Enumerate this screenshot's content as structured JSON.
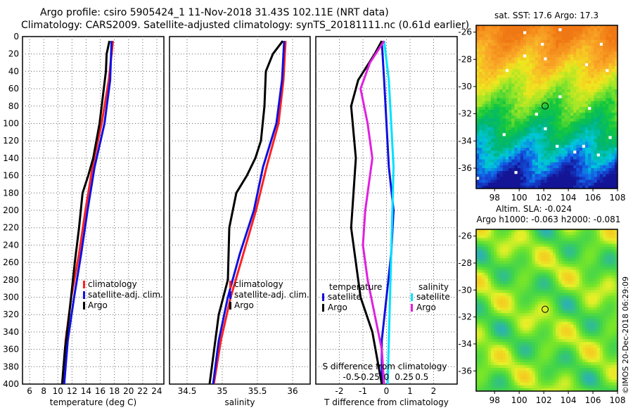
{
  "header": {
    "line1": "Argo profile: csiro 5905424_1 11-Nov-2018 31.43S 102.11E (NRT data)",
    "line2": "Climatology: CARS2009. Satellite-adjusted climatology: synTS_20181111.nc (0.61d earlier)"
  },
  "watermark": "©IMOS 20-Dec-2018 06:29:09",
  "colors": {
    "climatology": "#ff2020",
    "satellite_adj": "#1010e0",
    "argo": "#000000",
    "sat_salinity": "#00e0ff",
    "argo_salinity": "#e020e0"
  },
  "chart_data": [
    {
      "type": "line",
      "name": "temperature-profile",
      "xlabel": "temperature (deg C)",
      "ylabel": "",
      "xlim": [
        5,
        25
      ],
      "ylim": [
        400,
        0
      ],
      "xticks": [
        6,
        8,
        10,
        12,
        14,
        16,
        18,
        20,
        22,
        24
      ],
      "yticks": [
        0,
        20,
        40,
        60,
        80,
        100,
        120,
        140,
        160,
        180,
        200,
        220,
        240,
        260,
        280,
        300,
        320,
        340,
        360,
        380,
        400
      ],
      "grid": true,
      "legend": {
        "placement": "bottom-right",
        "entries": [
          "climatology",
          "satellite-adj. clim.",
          "Argo"
        ]
      },
      "series": [
        {
          "name": "climatology",
          "color": "#ff2020",
          "x": [
            17.8,
            17.2,
            16.2,
            14.9,
            13.9,
            13.0,
            11.9,
            11.1,
            10.7
          ],
          "y": [
            5,
            50,
            100,
            150,
            200,
            250,
            300,
            350,
            400
          ]
        },
        {
          "name": "satellite-adj. clim.",
          "color": "#1010e0",
          "x": [
            17.6,
            17.4,
            16.6,
            15.2,
            14.2,
            13.3,
            12.3,
            11.4,
            10.9
          ],
          "y": [
            5,
            50,
            100,
            150,
            200,
            250,
            300,
            350,
            400
          ]
        },
        {
          "name": "Argo",
          "color": "#000000",
          "x": [
            17.3,
            16.9,
            16.8,
            16.5,
            16.2,
            15.9,
            15.0,
            14.3,
            13.5,
            13.0,
            12.4,
            11.6,
            11.0,
            10.6
          ],
          "y": [
            5,
            20,
            40,
            60,
            80,
            100,
            140,
            160,
            180,
            220,
            260,
            320,
            360,
            400
          ]
        }
      ]
    },
    {
      "type": "line",
      "name": "salinity-profile",
      "xlabel": "salinity",
      "xlim": [
        34.25,
        36.25
      ],
      "ylim": [
        400,
        0
      ],
      "xticks": [
        34.5,
        35,
        35.5,
        36
      ],
      "xtick_labels": [
        "34.5",
        "35",
        "35.5",
        "36"
      ],
      "grid": true,
      "legend": {
        "placement": "bottom-right",
        "entries": [
          "climatology",
          "satellite-adj. clim.",
          "Argo"
        ]
      },
      "series": [
        {
          "name": "climatology",
          "color": "#ff2020",
          "x": [
            35.9,
            35.87,
            35.8,
            35.63,
            35.48,
            35.3,
            35.12,
            34.98,
            34.88
          ],
          "y": [
            5,
            50,
            100,
            150,
            200,
            250,
            300,
            350,
            400
          ]
        },
        {
          "name": "satellite-adj. clim.",
          "color": "#1010e0",
          "x": [
            35.88,
            35.85,
            35.77,
            35.58,
            35.45,
            35.25,
            35.08,
            34.95,
            34.87
          ],
          "y": [
            5,
            50,
            100,
            150,
            200,
            250,
            300,
            350,
            400
          ]
        },
        {
          "name": "Argo",
          "color": "#000000",
          "x": [
            35.86,
            35.72,
            35.62,
            35.6,
            35.55,
            35.47,
            35.35,
            35.2,
            35.1,
            35.08,
            34.95,
            34.82
          ],
          "y": [
            5,
            20,
            40,
            80,
            120,
            140,
            160,
            180,
            220,
            280,
            320,
            400
          ]
        }
      ]
    },
    {
      "type": "line",
      "name": "difference-profile",
      "xlabel": "T difference from climatology",
      "xlabel_top": "S difference from climatology",
      "xlim": [
        -3,
        3
      ],
      "ylim": [
        400,
        0
      ],
      "xticks": [
        -2,
        -1,
        0,
        1,
        2
      ],
      "xtick_labels_top": [
        "-0.5",
        "-0.25",
        "0",
        "0.25",
        "0.5"
      ],
      "grid": true,
      "legend": {
        "placement": "bottom",
        "left_title": "temperature",
        "right_title": "salinity",
        "entries": [
          "satellite",
          "Argo",
          "satellite",
          "Argo"
        ]
      },
      "series": [
        {
          "name": "T satellite",
          "color": "#1010e0",
          "x": [
            -0.2,
            -0.1,
            0.0,
            0.1,
            0.3,
            0.2,
            0.0,
            -0.2,
            -0.2
          ],
          "y": [
            5,
            50,
            100,
            150,
            200,
            250,
            300,
            350,
            400
          ]
        },
        {
          "name": "T Argo",
          "color": "#000000",
          "x": [
            -0.2,
            -0.5,
            -1.2,
            -1.5,
            -1.3,
            -1.4,
            -1.5,
            -1.3,
            -1.1,
            -0.6,
            -0.4,
            -0.2
          ],
          "y": [
            5,
            20,
            50,
            80,
            140,
            180,
            220,
            260,
            300,
            340,
            370,
            400
          ]
        },
        {
          "name": "S satellite",
          "color": "#00e0ff",
          "x": [
            -0.1,
            0.1,
            0.2,
            0.3,
            0.25,
            0.2,
            0.15,
            0.1,
            0.05
          ],
          "y": [
            5,
            50,
            100,
            150,
            200,
            250,
            300,
            350,
            400
          ]
        },
        {
          "name": "S Argo",
          "color": "#e020e0",
          "x": [
            -0.1,
            -0.7,
            -1.1,
            -0.8,
            -0.6,
            -0.9,
            -1.0,
            -0.8,
            -0.5,
            -0.2,
            -0.1
          ],
          "y": [
            5,
            30,
            60,
            100,
            140,
            200,
            240,
            280,
            320,
            360,
            400
          ]
        }
      ]
    },
    {
      "type": "heatmap",
      "name": "sst-map",
      "title": "sat. SST: 17.6 Argo: 17.3",
      "xlim": [
        96.5,
        108
      ],
      "ylim": [
        -37.5,
        -25.5
      ],
      "xticks": [
        98,
        100,
        102,
        104,
        106,
        108
      ],
      "yticks": [
        -26,
        -28,
        -30,
        -32,
        -34,
        -36
      ],
      "marker": {
        "lon": 102.11,
        "lat": -31.43
      }
    },
    {
      "type": "heatmap",
      "name": "sla-map",
      "title": "Altim. SLA: -0.024",
      "subtitle": "Argo h1000: -0.063 h2000: -0.081",
      "xlim": [
        96.5,
        108
      ],
      "ylim": [
        -37.5,
        -25.5
      ],
      "xticks": [
        98,
        100,
        102,
        104,
        106,
        108
      ],
      "yticks": [
        -26,
        -28,
        -30,
        -32,
        -34,
        -36
      ],
      "marker": {
        "lon": 102.11,
        "lat": -31.43
      }
    }
  ]
}
